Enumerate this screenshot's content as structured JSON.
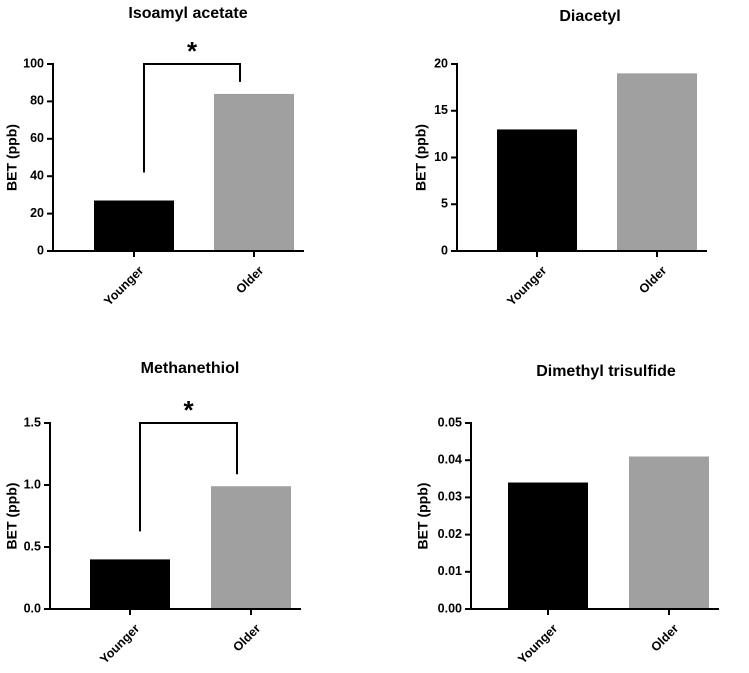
{
  "chart_data": [
    {
      "type": "bar",
      "title": "Isoamyl acetate",
      "ylabel": "BET (ppb)",
      "xlabel": "",
      "categories": [
        "Younger",
        "Older"
      ],
      "values": [
        27,
        84
      ],
      "colors": [
        "#000000",
        "#a0a0a0"
      ],
      "ylim": [
        0,
        100
      ],
      "yticks": [
        0,
        20,
        40,
        60,
        80,
        100
      ],
      "ytick_labels": [
        "0",
        "20",
        "40",
        "60",
        "80",
        "100"
      ],
      "significance": {
        "label": "*",
        "between": [
          0,
          1
        ]
      }
    },
    {
      "type": "bar",
      "title": "Diacetyl",
      "ylabel": "BET (ppb)",
      "xlabel": "",
      "categories": [
        "Younger",
        "Older"
      ],
      "values": [
        13,
        19
      ],
      "colors": [
        "#000000",
        "#a0a0a0"
      ],
      "ylim": [
        0,
        20
      ],
      "yticks": [
        0,
        5,
        10,
        15,
        20
      ],
      "ytick_labels": [
        "0",
        "5",
        "10",
        "15",
        "20"
      ],
      "significance": null
    },
    {
      "type": "bar",
      "title": "Methanethiol",
      "ylabel": "BET (ppb)",
      "xlabel": "",
      "categories": [
        "Younger",
        "Older"
      ],
      "values": [
        0.4,
        0.99
      ],
      "colors": [
        "#000000",
        "#a0a0a0"
      ],
      "ylim": [
        0,
        1.5
      ],
      "yticks": [
        0,
        0.5,
        1.0,
        1.5
      ],
      "ytick_labels": [
        "0.0",
        "0.5",
        "1.0",
        "1.5"
      ],
      "significance": {
        "label": "*",
        "between": [
          0,
          1
        ]
      }
    },
    {
      "type": "bar",
      "title": "Dimethyl trisulfide",
      "ylabel": "BET (ppb)",
      "xlabel": "",
      "categories": [
        "Younger",
        "Older"
      ],
      "values": [
        0.034,
        0.041
      ],
      "colors": [
        "#000000",
        "#a0a0a0"
      ],
      "ylim": [
        0,
        0.05
      ],
      "yticks": [
        0,
        0.01,
        0.02,
        0.03,
        0.04,
        0.05
      ],
      "ytick_labels": [
        "0.00",
        "0.01",
        "0.02",
        "0.03",
        "0.04",
        "0.05"
      ],
      "significance": null
    }
  ]
}
